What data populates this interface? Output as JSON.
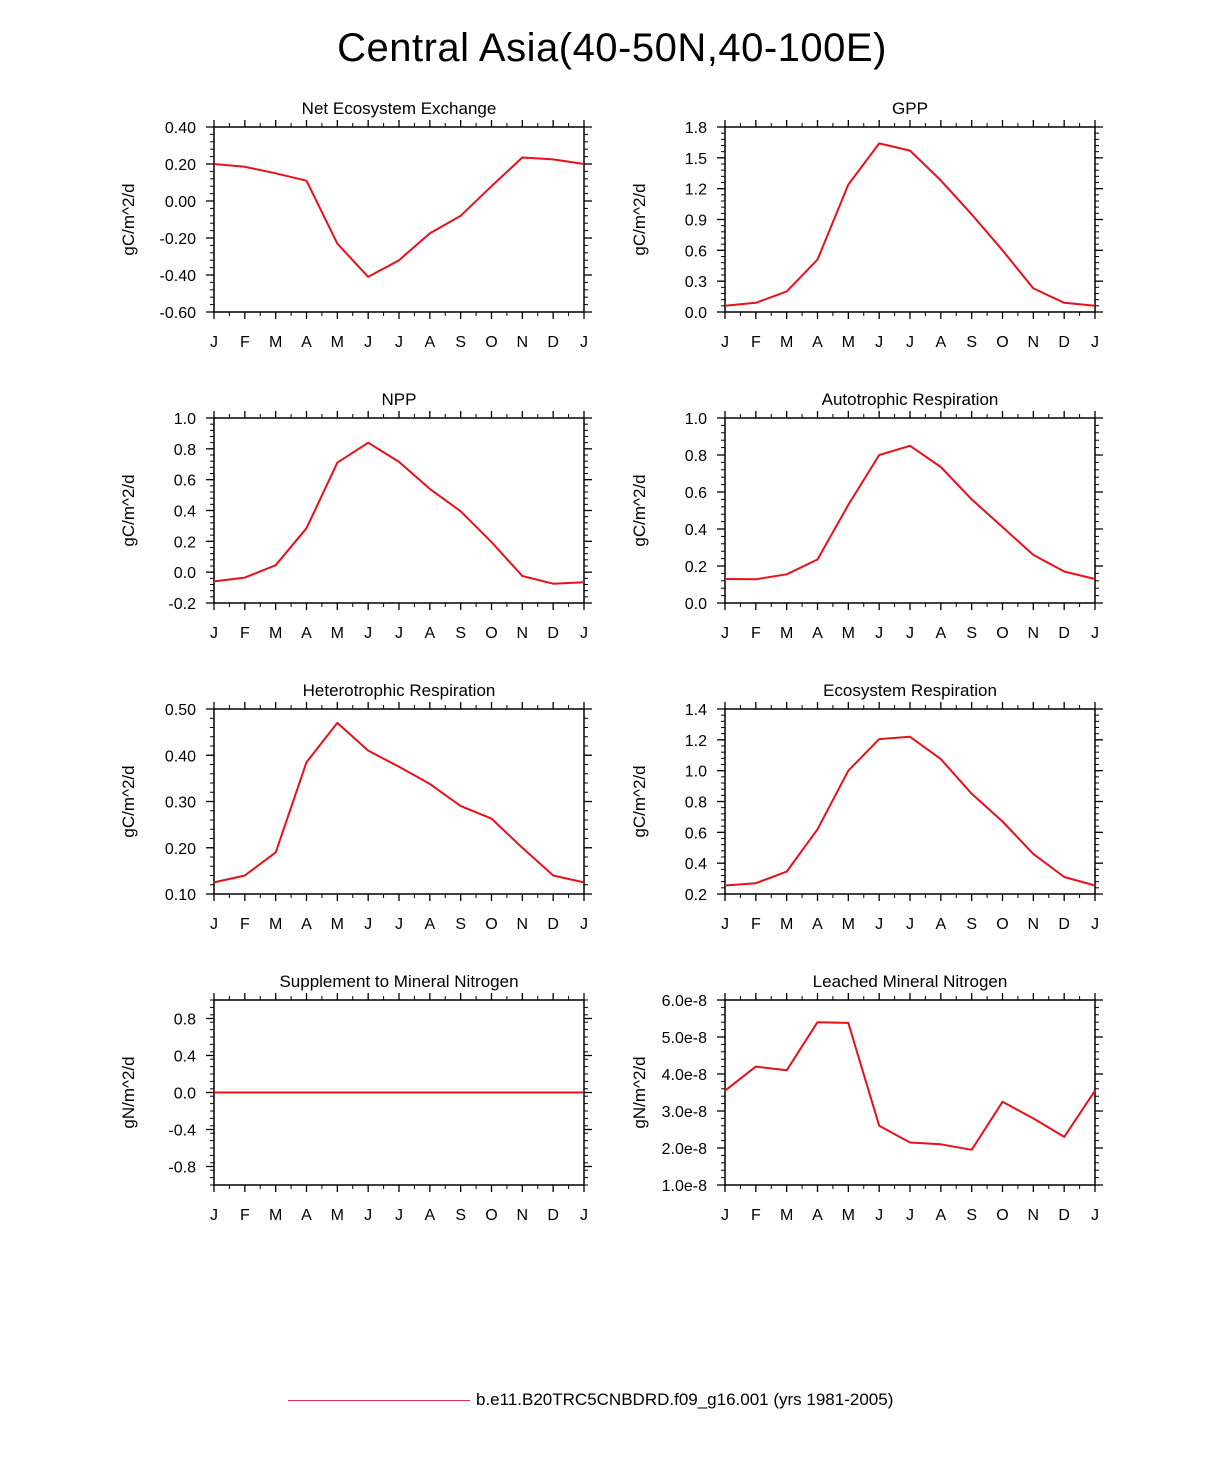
{
  "page": {
    "title": "Central Asia(40-50N,40-100E)",
    "legend": {
      "label": "b.e11.B20TRC5CNBDRD.f09_g16.001 (yrs 1981-2005)",
      "color": "#e03050"
    }
  },
  "series_color": "#e8101a",
  "chart_data": [
    {
      "type": "line",
      "title": "Net Ecosystem Exchange",
      "ylabel": "gC/m^2/d",
      "categories": [
        "J",
        "F",
        "M",
        "A",
        "M",
        "J",
        "J",
        "A",
        "S",
        "O",
        "N",
        "D",
        "J"
      ],
      "ylim": [
        -0.6,
        0.4
      ],
      "yticks": [
        "-0.60",
        "-0.40",
        "-0.20",
        "0.00",
        "0.20",
        "0.40"
      ],
      "ytick_values": [
        -0.6,
        -0.4,
        -0.2,
        0.0,
        0.2,
        0.4
      ],
      "values": [
        0.2,
        0.185,
        0.15,
        0.11,
        -0.23,
        -0.41,
        -0.32,
        -0.175,
        -0.08,
        0.08,
        0.235,
        0.225,
        0.2
      ]
    },
    {
      "type": "line",
      "title": "GPP",
      "ylabel": "gC/m^2/d",
      "categories": [
        "J",
        "F",
        "M",
        "A",
        "M",
        "J",
        "J",
        "A",
        "S",
        "O",
        "N",
        "D",
        "J"
      ],
      "ylim": [
        0.0,
        1.8
      ],
      "yticks": [
        "0.0",
        "0.3",
        "0.6",
        "0.9",
        "1.2",
        "1.5",
        "1.8"
      ],
      "ytick_values": [
        0.0,
        0.3,
        0.6,
        0.9,
        1.2,
        1.5,
        1.8
      ],
      "values": [
        0.06,
        0.09,
        0.2,
        0.51,
        1.24,
        1.64,
        1.57,
        1.28,
        0.95,
        0.6,
        0.23,
        0.09,
        0.06
      ]
    },
    {
      "type": "line",
      "title": "NPP",
      "ylabel": "gC/m^2/d",
      "categories": [
        "J",
        "F",
        "M",
        "A",
        "M",
        "J",
        "J",
        "A",
        "S",
        "O",
        "N",
        "D",
        "J"
      ],
      "ylim": [
        -0.2,
        1.0
      ],
      "yticks": [
        "-0.2",
        "0.0",
        "0.2",
        "0.4",
        "0.6",
        "0.8",
        "1.0"
      ],
      "ytick_values": [
        -0.2,
        0.0,
        0.2,
        0.4,
        0.6,
        0.8,
        1.0
      ],
      "values": [
        -0.06,
        -0.035,
        0.045,
        0.285,
        0.71,
        0.84,
        0.715,
        0.54,
        0.395,
        0.195,
        -0.025,
        -0.075,
        -0.065
      ]
    },
    {
      "type": "line",
      "title": "Autotrophic Respiration",
      "ylabel": "gC/m^2/d",
      "categories": [
        "J",
        "F",
        "M",
        "A",
        "M",
        "J",
        "J",
        "A",
        "S",
        "O",
        "N",
        "D",
        "J"
      ],
      "ylim": [
        0.0,
        1.0
      ],
      "yticks": [
        "0.0",
        "0.2",
        "0.4",
        "0.6",
        "0.8",
        "1.0"
      ],
      "ytick_values": [
        0.0,
        0.2,
        0.4,
        0.6,
        0.8,
        1.0
      ],
      "values": [
        0.13,
        0.128,
        0.155,
        0.235,
        0.53,
        0.8,
        0.85,
        0.735,
        0.56,
        0.41,
        0.26,
        0.17,
        0.13
      ]
    },
    {
      "type": "line",
      "title": "Heterotrophic Respiration",
      "ylabel": "gC/m^2/d",
      "categories": [
        "J",
        "F",
        "M",
        "A",
        "M",
        "J",
        "J",
        "A",
        "S",
        "O",
        "N",
        "D",
        "J"
      ],
      "ylim": [
        0.1,
        0.5
      ],
      "yticks": [
        "0.10",
        "0.20",
        "0.30",
        "0.40",
        "0.50"
      ],
      "ytick_values": [
        0.1,
        0.2,
        0.3,
        0.4,
        0.5
      ],
      "values": [
        0.125,
        0.14,
        0.19,
        0.385,
        0.47,
        0.41,
        0.375,
        0.338,
        0.29,
        0.263,
        0.2,
        0.14,
        0.125
      ]
    },
    {
      "type": "line",
      "title": "Ecosystem Respiration",
      "ylabel": "gC/m^2/d",
      "categories": [
        "J",
        "F",
        "M",
        "A",
        "M",
        "J",
        "J",
        "A",
        "S",
        "O",
        "N",
        "D",
        "J"
      ],
      "ylim": [
        0.2,
        1.4
      ],
      "yticks": [
        "0.2",
        "0.4",
        "0.6",
        "0.8",
        "1.0",
        "1.2",
        "1.4"
      ],
      "ytick_values": [
        0.2,
        0.4,
        0.6,
        0.8,
        1.0,
        1.2,
        1.4
      ],
      "values": [
        0.255,
        0.27,
        0.345,
        0.62,
        1.0,
        1.205,
        1.22,
        1.075,
        0.85,
        0.67,
        0.46,
        0.31,
        0.255
      ]
    },
    {
      "type": "line",
      "title": "Supplement to Mineral Nitrogen",
      "ylabel": "gN/m^2/d",
      "categories": [
        "J",
        "F",
        "M",
        "A",
        "M",
        "J",
        "J",
        "A",
        "S",
        "O",
        "N",
        "D",
        "J"
      ],
      "ylim": [
        -1.0,
        1.0
      ],
      "yticks": [
        "-0.8",
        "-0.4",
        "0.0",
        "0.4",
        "0.8"
      ],
      "ytick_values": [
        -0.8,
        -0.4,
        0.0,
        0.4,
        0.8
      ],
      "values": [
        0,
        0,
        0,
        0,
        0,
        0,
        0,
        0,
        0,
        0,
        0,
        0,
        0
      ]
    },
    {
      "type": "line",
      "title": "Leached Mineral Nitrogen",
      "ylabel": "gN/m^2/d",
      "categories": [
        "J",
        "F",
        "M",
        "A",
        "M",
        "J",
        "J",
        "A",
        "S",
        "O",
        "N",
        "D",
        "J"
      ],
      "ylim": [
        1e-08,
        6e-08
      ],
      "yticks": [
        "1.0e-8",
        "2.0e-8",
        "3.0e-8",
        "4.0e-8",
        "5.0e-8",
        "6.0e-8"
      ],
      "ytick_values": [
        1e-08,
        2e-08,
        3e-08,
        4e-08,
        5e-08,
        6e-08
      ],
      "values": [
        3.55e-08,
        4.2e-08,
        4.1e-08,
        5.4e-08,
        5.38e-08,
        2.6e-08,
        2.15e-08,
        2.1e-08,
        1.95e-08,
        3.25e-08,
        2.8e-08,
        2.3e-08,
        3.55e-08
      ]
    }
  ]
}
